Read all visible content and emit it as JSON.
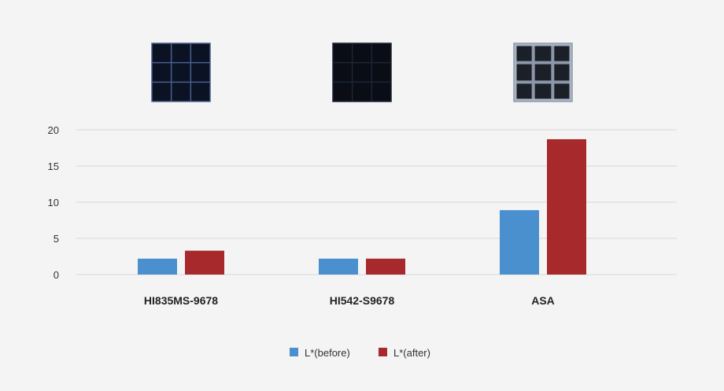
{
  "chart_data": {
    "type": "bar",
    "categories": [
      "HI835MS-9678",
      "HI542-S9678",
      "ASA"
    ],
    "series": [
      {
        "name": "L*(before)",
        "values": [
          2.2,
          2.2,
          8.9
        ],
        "color": "#4a90cf"
      },
      {
        "name": "L*(after)",
        "values": [
          3.3,
          2.2,
          18.7
        ],
        "color": "#a8292c"
      }
    ],
    "yticks": [
      "0",
      "5",
      "10",
      "15",
      "20"
    ],
    "ylim": [
      0,
      20
    ],
    "grid": true,
    "legend_position": "bottom-center",
    "xlabel": "",
    "ylabel": "",
    "title": ""
  },
  "samples": [
    {
      "category": "HI835MS-9678",
      "swatch": "dark-navy-grid",
      "grid_color": "#4a5f8c",
      "fill": "#0b1224"
    },
    {
      "category": "HI542-S9678",
      "swatch": "black-faint-grid",
      "grid_color": "#1c2436",
      "fill": "#0a0d16"
    },
    {
      "category": "ASA",
      "swatch": "gray-white-grid",
      "grid_color": "#8c97a8",
      "fill": "#1a1f28"
    }
  ]
}
